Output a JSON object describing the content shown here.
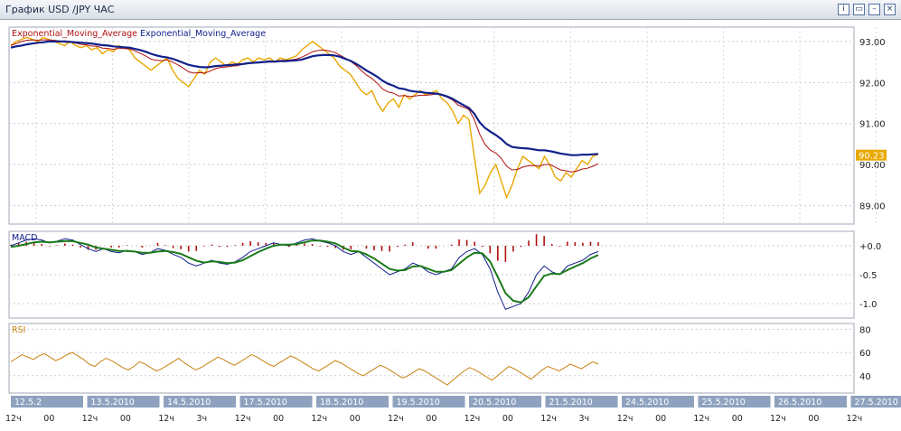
{
  "window": {
    "title": "График USD /JPY  ЧАС",
    "buttons": [
      {
        "name": "info-button",
        "icon": "info-icon",
        "glyph": "i"
      },
      {
        "name": "window-button",
        "icon": "window-icon",
        "glyph": "▭"
      },
      {
        "name": "minimize-button",
        "icon": "minimize-icon",
        "glyph": "–"
      },
      {
        "name": "close-button",
        "icon": "close-icon",
        "glyph": "×"
      }
    ]
  },
  "chart_data": [
    {
      "type": "line",
      "legend": [
        "Exponential_Moving_Average",
        "Exponential_Moving_Average"
      ],
      "legend_colors": [
        "#b01010",
        "#10208a"
      ],
      "y_ticks": [
        "93.00",
        "92.00",
        "91.00",
        "90.00",
        "89.00"
      ],
      "ylim": [
        88.55,
        93.35
      ],
      "last_price": "90.23",
      "price_color": "#e8a800",
      "grid": true,
      "price": [
        92.9,
        93.0,
        93.05,
        93.1,
        93.05,
        93.0,
        93.1,
        93.05,
        93.0,
        92.95,
        92.9,
        93.0,
        92.9,
        92.85,
        92.9,
        92.8,
        92.85,
        92.7,
        92.8,
        92.75,
        92.9,
        92.85,
        92.8,
        92.6,
        92.5,
        92.4,
        92.3,
        92.4,
        92.5,
        92.6,
        92.3,
        92.1,
        92.0,
        91.9,
        92.1,
        92.3,
        92.2,
        92.5,
        92.6,
        92.5,
        92.4,
        92.5,
        92.45,
        92.55,
        92.6,
        92.5,
        92.6,
        92.55,
        92.6,
        92.5,
        92.6,
        92.55,
        92.6,
        92.65,
        92.8,
        92.9,
        93.0,
        92.9,
        92.8,
        92.7,
        92.6,
        92.4,
        92.3,
        92.2,
        92.0,
        91.8,
        91.7,
        91.8,
        91.5,
        91.3,
        91.5,
        91.6,
        91.4,
        91.7,
        91.6,
        91.7,
        91.8,
        91.7,
        91.75,
        91.8,
        91.6,
        91.5,
        91.3,
        91.0,
        91.2,
        91.1,
        90.2,
        89.3,
        89.5,
        89.8,
        90.0,
        89.6,
        89.2,
        89.5,
        89.9,
        90.2,
        90.1,
        90.0,
        89.9,
        90.2,
        90.0,
        89.7,
        89.6,
        89.8,
        89.7,
        89.9,
        90.1,
        90.0,
        90.2,
        90.25
      ],
      "ema_fast": [
        92.9,
        92.95,
        93.0,
        93.03,
        93.04,
        93.03,
        93.04,
        93.04,
        93.03,
        93.01,
        92.98,
        92.98,
        92.96,
        92.93,
        92.92,
        92.89,
        92.88,
        92.84,
        92.83,
        92.81,
        92.83,
        92.83,
        92.82,
        92.77,
        92.71,
        92.65,
        92.57,
        92.54,
        92.53,
        92.55,
        92.5,
        92.43,
        92.35,
        92.26,
        92.23,
        92.24,
        92.23,
        92.28,
        92.34,
        92.37,
        92.38,
        92.4,
        92.41,
        92.44,
        92.47,
        92.48,
        92.5,
        92.51,
        92.53,
        92.52,
        92.54,
        92.54,
        92.55,
        92.57,
        92.62,
        92.68,
        92.75,
        92.78,
        92.79,
        92.77,
        92.74,
        92.67,
        92.6,
        92.52,
        92.42,
        92.3,
        92.18,
        92.1,
        91.98,
        91.84,
        91.77,
        91.74,
        91.67,
        91.68,
        91.66,
        91.67,
        91.69,
        91.69,
        91.7,
        91.72,
        91.69,
        91.64,
        91.57,
        91.45,
        91.4,
        91.34,
        91.1,
        90.74,
        90.49,
        90.35,
        90.28,
        90.15,
        89.96,
        89.87,
        89.88,
        89.94,
        89.97,
        89.98,
        89.96,
        90.0,
        90.0,
        89.94,
        89.87,
        89.85,
        89.82,
        89.84,
        89.89,
        89.91,
        89.96,
        90.02
      ],
      "ema_slow": [
        92.85,
        92.88,
        92.9,
        92.93,
        92.95,
        92.97,
        92.98,
        93.0,
        93.0,
        93.0,
        93.0,
        92.99,
        92.98,
        92.97,
        92.96,
        92.95,
        92.93,
        92.91,
        92.9,
        92.88,
        92.87,
        92.86,
        92.85,
        92.82,
        92.79,
        92.75,
        92.7,
        92.66,
        92.63,
        92.61,
        92.58,
        92.53,
        92.48,
        92.43,
        92.4,
        92.38,
        92.37,
        92.38,
        92.4,
        92.41,
        92.42,
        92.43,
        92.44,
        92.45,
        92.47,
        92.48,
        92.49,
        92.5,
        92.51,
        92.51,
        92.52,
        92.52,
        92.53,
        92.54,
        92.56,
        92.6,
        92.64,
        92.66,
        92.67,
        92.67,
        92.66,
        92.63,
        92.58,
        92.53,
        92.46,
        92.38,
        92.29,
        92.22,
        92.14,
        92.04,
        91.97,
        91.92,
        91.86,
        91.84,
        91.8,
        91.78,
        91.77,
        91.75,
        91.74,
        91.73,
        91.7,
        91.66,
        91.6,
        91.52,
        91.45,
        91.38,
        91.24,
        91.03,
        90.89,
        90.8,
        90.72,
        90.62,
        90.5,
        90.43,
        90.41,
        90.4,
        90.39,
        90.37,
        90.35,
        90.35,
        90.33,
        90.3,
        90.27,
        90.25,
        90.23,
        90.23,
        90.24,
        90.24,
        90.25,
        90.26
      ]
    },
    {
      "type": "line",
      "legend": [
        "MACD"
      ],
      "y_ticks": [
        "+0.0",
        "-0.5",
        "-1.0"
      ],
      "ylim": [
        -1.25,
        0.25
      ],
      "grid": true,
      "macd": [
        0.0,
        0.05,
        0.1,
        0.12,
        0.1,
        0.05,
        0.08,
        0.12,
        0.1,
        0.02,
        -0.05,
        -0.1,
        -0.05,
        -0.1,
        -0.12,
        -0.08,
        -0.1,
        -0.15,
        -0.12,
        -0.05,
        -0.08,
        -0.15,
        -0.2,
        -0.3,
        -0.35,
        -0.3,
        -0.25,
        -0.3,
        -0.32,
        -0.28,
        -0.2,
        -0.1,
        -0.05,
        0.0,
        0.05,
        0.02,
        0.0,
        0.05,
        0.1,
        0.12,
        0.08,
        0.05,
        0.0,
        -0.1,
        -0.15,
        -0.1,
        -0.2,
        -0.3,
        -0.4,
        -0.5,
        -0.45,
        -0.4,
        -0.3,
        -0.35,
        -0.45,
        -0.5,
        -0.45,
        -0.4,
        -0.2,
        -0.1,
        -0.05,
        -0.15,
        -0.4,
        -0.8,
        -1.1,
        -1.05,
        -1.0,
        -0.8,
        -0.5,
        -0.35,
        -0.45,
        -0.5,
        -0.35,
        -0.3,
        -0.25,
        -0.15,
        -0.1
      ],
      "signal": [
        -0.02,
        0.0,
        0.03,
        0.06,
        0.07,
        0.06,
        0.07,
        0.08,
        0.08,
        0.05,
        0.02,
        -0.03,
        -0.05,
        -0.07,
        -0.09,
        -0.09,
        -0.1,
        -0.12,
        -0.12,
        -0.1,
        -0.09,
        -0.11,
        -0.14,
        -0.2,
        -0.26,
        -0.29,
        -0.27,
        -0.28,
        -0.3,
        -0.29,
        -0.25,
        -0.18,
        -0.11,
        -0.05,
        0.0,
        0.02,
        0.02,
        0.03,
        0.06,
        0.09,
        0.09,
        0.07,
        0.04,
        -0.03,
        -0.09,
        -0.1,
        -0.15,
        -0.22,
        -0.31,
        -0.4,
        -0.43,
        -0.42,
        -0.36,
        -0.35,
        -0.4,
        -0.45,
        -0.45,
        -0.42,
        -0.31,
        -0.2,
        -0.12,
        -0.13,
        -0.27,
        -0.54,
        -0.82,
        -0.95,
        -0.98,
        -0.89,
        -0.7,
        -0.52,
        -0.48,
        -0.49,
        -0.42,
        -0.36,
        -0.3,
        -0.22,
        -0.16
      ],
      "histogram": [
        0.02,
        0.05,
        0.07,
        0.06,
        0.03,
        -0.01,
        0.01,
        0.04,
        0.02,
        -0.03,
        -0.07,
        -0.07,
        0.0,
        -0.03,
        -0.03,
        0.01,
        0.0,
        -0.03,
        0.0,
        0.05,
        0.01,
        -0.04,
        -0.06,
        -0.1,
        -0.09,
        -0.01,
        0.02,
        -0.02,
        -0.02,
        0.01,
        0.05,
        0.08,
        0.06,
        0.05,
        0.05,
        0.0,
        -0.02,
        0.02,
        0.04,
        0.03,
        -0.01,
        -0.02,
        -0.04,
        -0.07,
        -0.06,
        0.0,
        -0.05,
        -0.08,
        -0.09,
        -0.1,
        -0.02,
        0.02,
        0.06,
        0.0,
        -0.05,
        -0.05,
        0.0,
        0.02,
        0.11,
        0.1,
        0.07,
        -0.02,
        -0.13,
        -0.26,
        -0.28,
        -0.1,
        -0.02,
        0.09,
        0.2,
        0.17,
        0.03,
        -0.01,
        0.07,
        0.06,
        0.05,
        0.07,
        0.06
      ]
    },
    {
      "type": "line",
      "legend": [
        "RSI"
      ],
      "y_ticks": [
        "80",
        "60",
        "40"
      ],
      "ylim": [
        25,
        85
      ],
      "grid": true,
      "rsi": [
        52,
        55,
        58,
        56,
        54,
        57,
        59,
        56,
        53,
        55,
        58,
        60,
        57,
        54,
        50,
        48,
        52,
        55,
        53,
        50,
        47,
        45,
        48,
        52,
        50,
        47,
        44,
        46,
        49,
        52,
        55,
        51,
        48,
        45,
        47,
        50,
        53,
        56,
        54,
        51,
        49,
        52,
        55,
        58,
        56,
        53,
        50,
        48,
        51,
        54,
        57,
        55,
        52,
        49,
        46,
        44,
        47,
        50,
        53,
        51,
        48,
        45,
        42,
        40,
        43,
        46,
        49,
        47,
        44,
        41,
        38,
        40,
        43,
        46,
        44,
        41,
        38,
        35,
        32,
        36,
        40,
        44,
        47,
        45,
        42,
        39,
        36,
        40,
        44,
        48,
        46,
        43,
        40,
        37,
        41,
        45,
        48,
        46,
        44,
        47,
        50,
        48,
        46,
        49,
        52,
        50
      ]
    }
  ],
  "time_axis": {
    "dates": [
      "12.5.2",
      "13.5.2010",
      "14.5.2010",
      "17.5.2010",
      "18.5.2010",
      "19.5.2010",
      "20.5.2010",
      "21.5.2010",
      "24.5.2010",
      "25.5.2010",
      "26.5.2010",
      "27.5.2010"
    ],
    "hours": [
      "12ч",
      "00",
      "12ч",
      "00",
      "12ч",
      "3ч",
      "12ч",
      "00",
      "12ч",
      "00",
      "12ч",
      "00",
      "12ч",
      "00",
      "12ч",
      "3ч",
      "12ч",
      "00",
      "12ч",
      "00",
      "12ч",
      "00",
      "12ч"
    ]
  }
}
